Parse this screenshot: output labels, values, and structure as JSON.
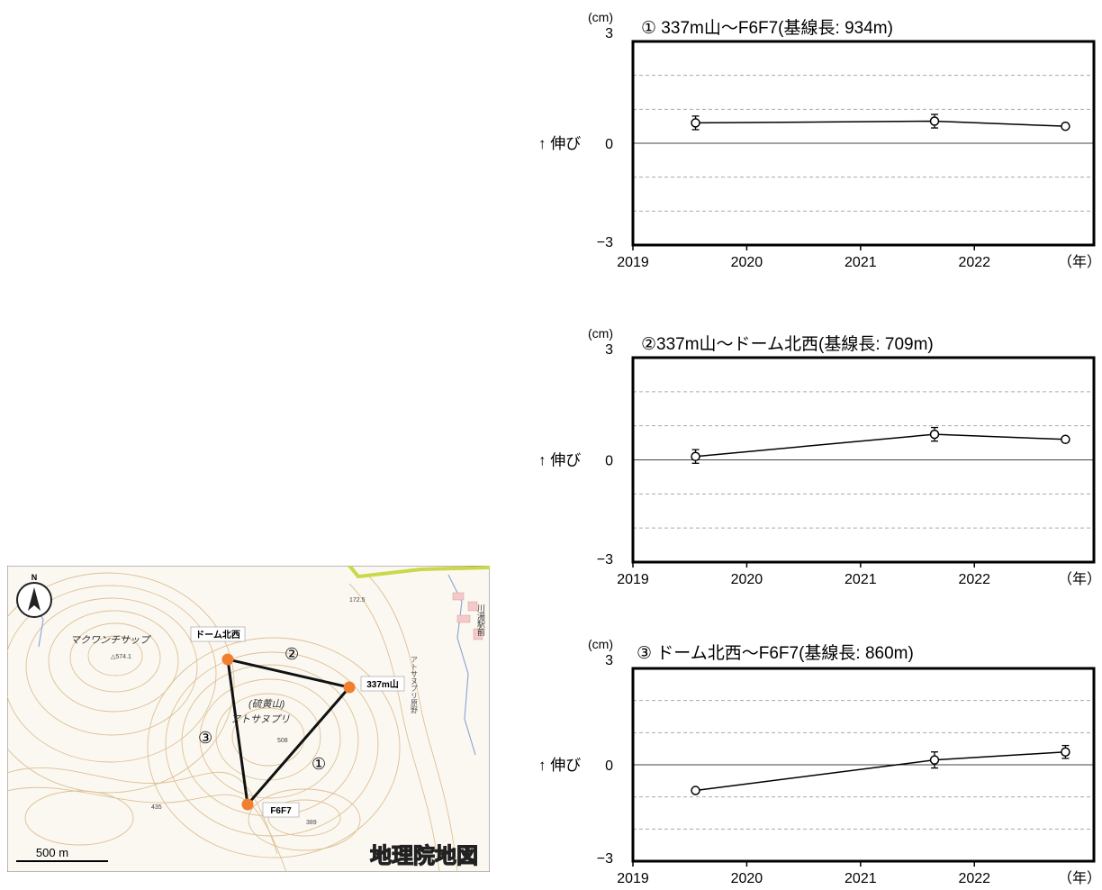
{
  "map": {
    "north_label": "N",
    "stations": [
      {
        "label": "ドーム北西",
        "color": "#f07f2e"
      },
      {
        "label": "337m山",
        "color": "#f07f2e"
      },
      {
        "label": "F6F7",
        "color": "#f07f2e"
      }
    ],
    "baseline_marks": [
      "①",
      "②",
      "③"
    ],
    "place_names": [
      "マクワンチサップ",
      "(硫黄山)",
      "アトサヌプリ",
      "川湯駅前",
      "アトサヌプリ原野"
    ],
    "spot_heights": [
      "△574.1",
      "172.5",
      "508",
      "435",
      "389"
    ],
    "scale_label": "500 m",
    "credit": "地理院地図",
    "colors": {
      "contour": "#d8b784",
      "road": "#c9d94a",
      "stream": "#8fa9d6",
      "station": "#f07f2e"
    }
  },
  "chart_data": [
    {
      "type": "line",
      "title": "①  337m山～F6F7(基線長: 934m)",
      "ylabel": "↑ 伸び",
      "y_unit": "(cm)",
      "x_unit": "（年）",
      "ylim": [
        -3,
        3
      ],
      "xlim": [
        2019,
        2023.05
      ],
      "x_ticks": [
        2019,
        2020,
        2021,
        2022
      ],
      "y_ticks": [
        -3,
        0,
        3
      ],
      "grid": "dashed every 1 cm",
      "series": [
        {
          "x": [
            2019.55,
            2021.65,
            2022.8
          ],
          "y": [
            0.6,
            0.65,
            0.5
          ],
          "yerr": [
            0.2,
            0.2,
            0.0
          ]
        }
      ]
    },
    {
      "type": "line",
      "title": "②337m山～ドーム北西(基線長: 709m)",
      "ylabel": "↑ 伸び",
      "y_unit": "(cm)",
      "x_unit": "（年）",
      "ylim": [
        -3,
        3
      ],
      "xlim": [
        2019,
        2023.05
      ],
      "x_ticks": [
        2019,
        2020,
        2021,
        2022
      ],
      "y_ticks": [
        -3,
        0,
        3
      ],
      "grid": "dashed every 1 cm",
      "series": [
        {
          "x": [
            2019.55,
            2021.65,
            2022.8
          ],
          "y": [
            0.1,
            0.75,
            0.6
          ],
          "yerr": [
            0.2,
            0.2,
            0.0
          ]
        }
      ]
    },
    {
      "type": "line",
      "title": "③ ドーム北西～F6F7(基線長: 860m)",
      "ylabel": "↑ 伸び",
      "y_unit": "(cm)",
      "x_unit": "（年）",
      "ylim": [
        -3,
        3
      ],
      "xlim": [
        2019,
        2023.05
      ],
      "x_ticks": [
        2019,
        2020,
        2021,
        2022
      ],
      "y_ticks": [
        -3,
        0,
        3
      ],
      "grid": "dashed every 1 cm",
      "series": [
        {
          "x": [
            2019.55,
            2021.65,
            2022.8
          ],
          "y": [
            -0.8,
            0.15,
            0.4
          ],
          "yerr": [
            0.0,
            0.25,
            0.2
          ]
        }
      ]
    }
  ]
}
